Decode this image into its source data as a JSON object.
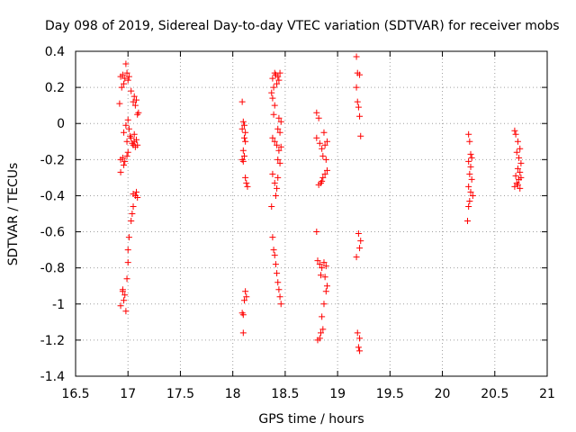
{
  "chart_data": {
    "type": "scatter",
    "title": "Day 098 of 2019, Sidereal Day-to-day VTEC variation (SDTVAR) for receiver mobs",
    "xlabel": "GPS time / hours",
    "ylabel": "SDTVAR / TECUs",
    "xlim": [
      16.5,
      21
    ],
    "ylim": [
      -1.4,
      0.4
    ],
    "xticks": [
      16.5,
      17,
      17.5,
      18,
      18.5,
      19,
      19.5,
      20,
      20.5,
      21
    ],
    "xtick_labels": [
      "16.5",
      "17",
      "17.5",
      "18",
      "18.5",
      "19",
      "19.5",
      "20",
      "20.5",
      "21"
    ],
    "yticks": [
      -1.4,
      -1.2,
      -1,
      -0.8,
      -0.6,
      -0.4,
      -0.2,
      0,
      0.2,
      0.4
    ],
    "ytick_labels": [
      "-1.4",
      "-1.2",
      "-1",
      "-0.8",
      "-0.6",
      "-0.4",
      "-0.2",
      "0",
      "0.2",
      "0.4"
    ],
    "grid": true,
    "marker": "+",
    "marker_color": "#ff0000",
    "series": [
      {
        "name": "SDTVAR",
        "points": [
          [
            16.93,
            0.26
          ],
          [
            16.95,
            0.27
          ],
          [
            16.97,
            0.25
          ],
          [
            16.98,
            0.33
          ],
          [
            16.99,
            0.28
          ],
          [
            17.0,
            0.24
          ],
          [
            17.01,
            0.26
          ],
          [
            16.94,
            0.2
          ],
          [
            16.96,
            0.22
          ],
          [
            16.92,
            0.11
          ],
          [
            16.98,
            -0.01
          ],
          [
            17.0,
            0.02
          ],
          [
            16.96,
            -0.05
          ],
          [
            17.01,
            -0.03
          ],
          [
            17.02,
            -0.07
          ],
          [
            16.99,
            -0.1
          ],
          [
            17.04,
            -0.11
          ],
          [
            17.05,
            -0.12
          ],
          [
            17.06,
            -0.1
          ],
          [
            17.07,
            -0.13
          ],
          [
            17.08,
            -0.09
          ],
          [
            17.03,
            -0.08
          ],
          [
            17.06,
            -0.06
          ],
          [
            17.09,
            -0.12
          ],
          [
            17.03,
            0.18
          ],
          [
            17.05,
            0.12
          ],
          [
            17.06,
            0.15
          ],
          [
            17.07,
            0.1
          ],
          [
            17.08,
            0.13
          ],
          [
            17.09,
            0.05
          ],
          [
            17.1,
            0.06
          ],
          [
            16.93,
            -0.2
          ],
          [
            16.95,
            -0.19
          ],
          [
            16.97,
            -0.21
          ],
          [
            16.99,
            -0.18
          ],
          [
            17.0,
            -0.16
          ],
          [
            16.96,
            -0.23
          ],
          [
            16.93,
            -0.27
          ],
          [
            17.05,
            -0.39
          ],
          [
            17.07,
            -0.4
          ],
          [
            17.09,
            -0.41
          ],
          [
            17.08,
            -0.38
          ],
          [
            17.04,
            -0.5
          ],
          [
            17.03,
            -0.54
          ],
          [
            17.05,
            -0.46
          ],
          [
            17.01,
            -0.63
          ],
          [
            17.0,
            -0.7
          ],
          [
            17.0,
            -0.77
          ],
          [
            16.99,
            -0.86
          ],
          [
            16.95,
            -0.93
          ],
          [
            16.97,
            -0.95
          ],
          [
            16.96,
            -0.98
          ],
          [
            16.93,
            -1.01
          ],
          [
            16.98,
            -1.04
          ],
          [
            16.95,
            -0.92
          ],
          [
            18.09,
            0.12
          ],
          [
            18.1,
            0.01
          ],
          [
            18.11,
            -0.01
          ],
          [
            18.09,
            -0.03
          ],
          [
            18.12,
            -0.05
          ],
          [
            18.11,
            -0.08
          ],
          [
            18.12,
            -0.1
          ],
          [
            18.1,
            -0.15
          ],
          [
            18.11,
            -0.18
          ],
          [
            18.09,
            -0.2
          ],
          [
            18.1,
            -0.21
          ],
          [
            18.12,
            -0.3
          ],
          [
            18.13,
            -0.33
          ],
          [
            18.14,
            -0.35
          ],
          [
            18.12,
            -0.93
          ],
          [
            18.13,
            -0.96
          ],
          [
            18.11,
            -0.98
          ],
          [
            18.09,
            -1.05
          ],
          [
            18.1,
            -1.06
          ],
          [
            18.1,
            -1.16
          ],
          [
            18.38,
            0.25
          ],
          [
            18.39,
            0.2
          ],
          [
            18.4,
            0.28
          ],
          [
            18.41,
            0.27
          ],
          [
            18.42,
            0.22
          ],
          [
            18.43,
            0.26
          ],
          [
            18.44,
            0.24
          ],
          [
            18.45,
            0.28
          ],
          [
            18.37,
            0.17
          ],
          [
            18.38,
            0.14
          ],
          [
            18.4,
            0.1
          ],
          [
            18.39,
            0.05
          ],
          [
            18.44,
            0.03
          ],
          [
            18.46,
            0.01
          ],
          [
            18.43,
            -0.03
          ],
          [
            18.45,
            -0.05
          ],
          [
            18.38,
            -0.08
          ],
          [
            18.4,
            -0.1
          ],
          [
            18.42,
            -0.12
          ],
          [
            18.44,
            -0.15
          ],
          [
            18.46,
            -0.13
          ],
          [
            18.43,
            -0.2
          ],
          [
            18.45,
            -0.22
          ],
          [
            18.38,
            -0.28
          ],
          [
            18.4,
            -0.33
          ],
          [
            18.42,
            -0.36
          ],
          [
            18.41,
            -0.4
          ],
          [
            18.43,
            -0.3
          ],
          [
            18.37,
            -0.46
          ],
          [
            18.38,
            -0.63
          ],
          [
            18.39,
            -0.7
          ],
          [
            18.4,
            -0.73
          ],
          [
            18.41,
            -0.78
          ],
          [
            18.42,
            -0.83
          ],
          [
            18.43,
            -0.88
          ],
          [
            18.44,
            -0.92
          ],
          [
            18.45,
            -0.96
          ],
          [
            18.46,
            -1.0
          ],
          [
            18.8,
            0.06
          ],
          [
            18.82,
            0.03
          ],
          [
            18.8,
            -0.08
          ],
          [
            18.83,
            -0.11
          ],
          [
            18.85,
            -0.14
          ],
          [
            18.87,
            -0.05
          ],
          [
            18.88,
            -0.12
          ],
          [
            18.9,
            -0.1
          ],
          [
            18.86,
            -0.18
          ],
          [
            18.89,
            -0.2
          ],
          [
            18.9,
            -0.26
          ],
          [
            18.88,
            -0.28
          ],
          [
            18.86,
            -0.3
          ],
          [
            18.84,
            -0.33
          ],
          [
            18.82,
            -0.34
          ],
          [
            18.85,
            -0.32
          ],
          [
            18.8,
            -0.6
          ],
          [
            18.81,
            -0.76
          ],
          [
            18.83,
            -0.78
          ],
          [
            18.85,
            -0.8
          ],
          [
            18.87,
            -0.77
          ],
          [
            18.89,
            -0.79
          ],
          [
            18.84,
            -0.84
          ],
          [
            18.88,
            -0.85
          ],
          [
            18.9,
            -0.9
          ],
          [
            18.89,
            -0.93
          ],
          [
            18.87,
            -1.0
          ],
          [
            18.85,
            -1.07
          ],
          [
            18.86,
            -1.14
          ],
          [
            18.84,
            -1.16
          ],
          [
            18.83,
            -1.19
          ],
          [
            18.81,
            -1.2
          ],
          [
            19.18,
            0.37
          ],
          [
            19.19,
            0.28
          ],
          [
            19.21,
            0.27
          ],
          [
            19.18,
            0.2
          ],
          [
            19.19,
            0.12
          ],
          [
            19.2,
            0.09
          ],
          [
            19.21,
            0.04
          ],
          [
            19.22,
            -0.07
          ],
          [
            19.2,
            -0.61
          ],
          [
            19.22,
            -0.65
          ],
          [
            19.21,
            -0.69
          ],
          [
            19.18,
            -0.74
          ],
          [
            19.19,
            -1.16
          ],
          [
            19.21,
            -1.19
          ],
          [
            19.2,
            -1.24
          ],
          [
            19.21,
            -1.26
          ],
          [
            20.25,
            -0.06
          ],
          [
            20.26,
            -0.1
          ],
          [
            20.27,
            -0.17
          ],
          [
            20.28,
            -0.19
          ],
          [
            20.25,
            -0.21
          ],
          [
            20.27,
            -0.24
          ],
          [
            20.26,
            -0.28
          ],
          [
            20.28,
            -0.31
          ],
          [
            20.25,
            -0.35
          ],
          [
            20.27,
            -0.38
          ],
          [
            20.29,
            -0.4
          ],
          [
            20.26,
            -0.43
          ],
          [
            20.25,
            -0.46
          ],
          [
            20.24,
            -0.54
          ],
          [
            20.69,
            -0.04
          ],
          [
            20.7,
            -0.06
          ],
          [
            20.72,
            -0.1
          ],
          [
            20.74,
            -0.14
          ],
          [
            20.71,
            -0.16
          ],
          [
            20.73,
            -0.19
          ],
          [
            20.75,
            -0.22
          ],
          [
            20.72,
            -0.25
          ],
          [
            20.74,
            -0.27
          ],
          [
            20.7,
            -0.29
          ],
          [
            20.73,
            -0.31
          ],
          [
            20.71,
            -0.33
          ],
          [
            20.69,
            -0.35
          ],
          [
            20.74,
            -0.36
          ],
          [
            20.72,
            -0.34
          ],
          [
            20.75,
            -0.3
          ]
        ]
      }
    ]
  }
}
